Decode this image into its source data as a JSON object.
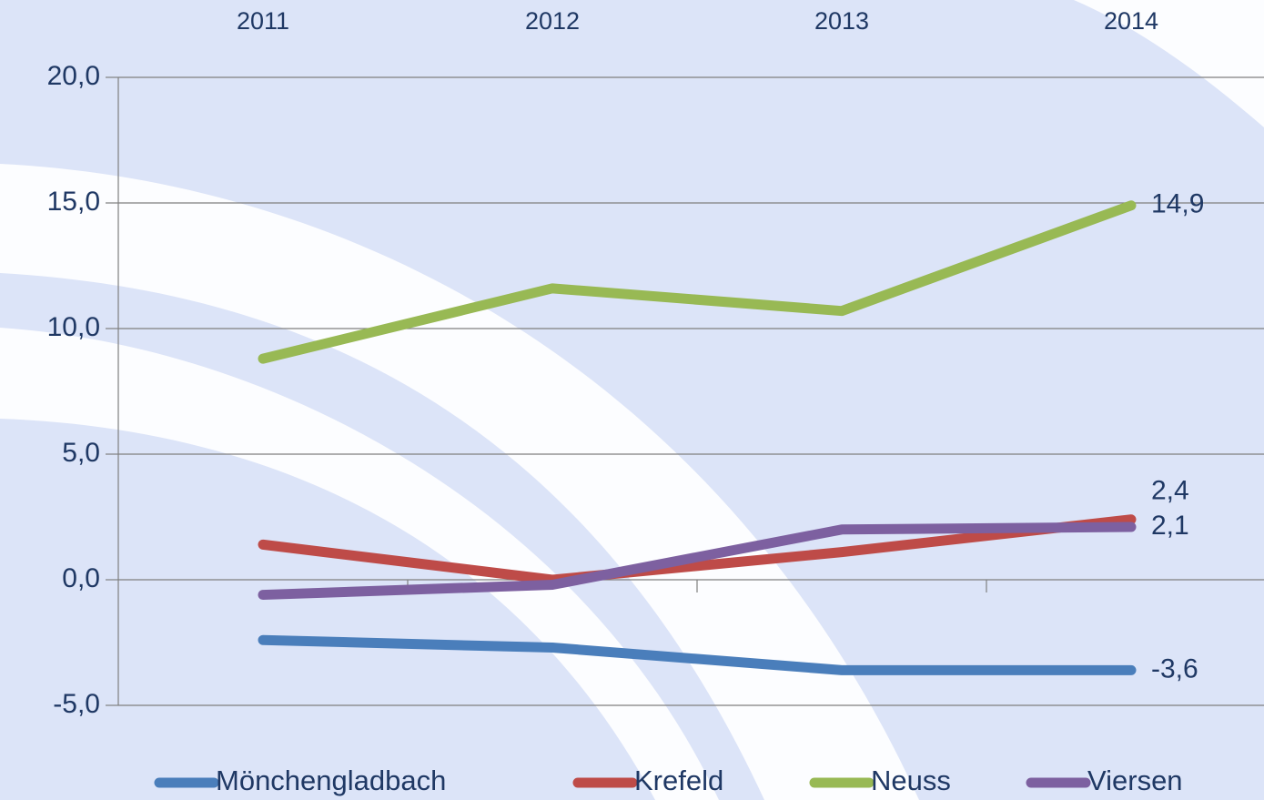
{
  "chart_data": {
    "type": "line",
    "categories": [
      "2011",
      "2012",
      "2013",
      "2014"
    ],
    "series": [
      {
        "name": "Mönchengladbach",
        "color": "#4a7ebb",
        "values": [
          -2.4,
          -2.7,
          -3.6,
          -3.6
        ],
        "value_labels": [
          null,
          null,
          null,
          "-3,6"
        ]
      },
      {
        "name": "Krefeld",
        "color": "#be4b48",
        "values": [
          1.4,
          0.0,
          1.1,
          2.4
        ],
        "value_labels": [
          null,
          null,
          null,
          "2,4"
        ]
      },
      {
        "name": "Neuss",
        "color": "#98b954",
        "values": [
          8.8,
          11.6,
          10.7,
          14.9
        ],
        "value_labels": [
          null,
          null,
          null,
          "14,9"
        ]
      },
      {
        "name": "Viersen",
        "color": "#7d60a0",
        "values": [
          -0.6,
          -0.2,
          2.0,
          2.1
        ],
        "value_labels": [
          null,
          null,
          null,
          "2,1"
        ]
      }
    ],
    "ylim": [
      -5,
      20
    ],
    "yticks": [
      {
        "value": -5,
        "label": "-5,0"
      },
      {
        "value": 0,
        "label": "0,0"
      },
      {
        "value": 5,
        "label": "5,0"
      },
      {
        "value": 10,
        "label": "10,0"
      },
      {
        "value": 15,
        "label": "15,0"
      },
      {
        "value": 20,
        "label": "20,0"
      }
    ],
    "grid": true,
    "legend": "bottom"
  }
}
